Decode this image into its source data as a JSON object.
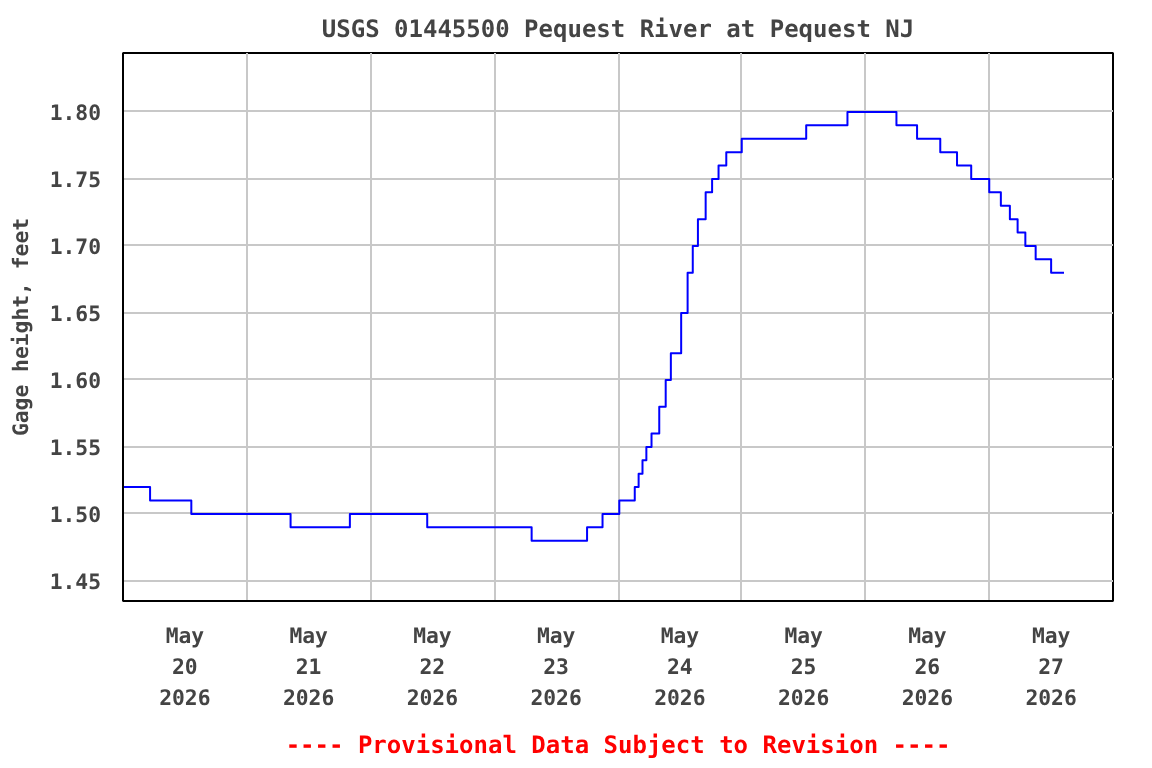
{
  "chart_data": {
    "type": "step",
    "title": "USGS 01445500 Pequest River at Pequest NJ",
    "ylabel": "Gage height, feet",
    "annotations": [
      "---- Provisional Data Subject to Revision ----"
    ],
    "x": [
      "2026-05-20T00:00",
      "2026-05-20T05:15",
      "2026-05-20T13:15",
      "2026-05-21T08:30",
      "2026-05-21T20:00",
      "2026-05-22T11:00",
      "2026-05-23T07:15",
      "2026-05-23T18:00",
      "2026-05-23T21:00",
      "2026-05-24T00:15",
      "2026-05-24T03:15",
      "2026-05-24T04:00",
      "2026-05-24T04:45",
      "2026-05-24T05:30",
      "2026-05-24T06:30",
      "2026-05-24T08:00",
      "2026-05-24T09:15",
      "2026-05-24T10:15",
      "2026-05-24T12:15",
      "2026-05-24T13:30",
      "2026-05-24T14:30",
      "2026-05-24T15:30",
      "2026-05-24T17:00",
      "2026-05-24T18:15",
      "2026-05-24T19:30",
      "2026-05-24T21:00",
      "2026-05-25T00:00",
      "2026-05-25T12:30",
      "2026-05-25T20:30",
      "2026-05-26T06:00",
      "2026-05-26T10:00",
      "2026-05-26T14:30",
      "2026-05-26T17:45",
      "2026-05-26T20:30",
      "2026-05-27T00:00",
      "2026-05-27T02:15",
      "2026-05-27T04:00",
      "2026-05-27T05:30",
      "2026-05-27T07:00",
      "2026-05-27T09:00",
      "2026-05-27T12:00",
      "2026-05-27T14:30"
    ],
    "series": [
      {
        "color": "#0000ff",
        "values": [
          1.52,
          1.51,
          1.5,
          1.49,
          1.5,
          1.49,
          1.48,
          1.49,
          1.5,
          1.51,
          1.52,
          1.53,
          1.54,
          1.55,
          1.56,
          1.58,
          1.6,
          1.62,
          1.65,
          1.68,
          1.7,
          1.72,
          1.74,
          1.75,
          1.76,
          1.77,
          1.78,
          1.79,
          1.8,
          1.79,
          1.78,
          1.77,
          1.76,
          1.75,
          1.74,
          1.73,
          1.72,
          1.71,
          1.7,
          1.69,
          1.68,
          1.68
        ]
      }
    ],
    "xlim": [
      "2026-05-20T00:00",
      "2026-05-28T00:00"
    ],
    "xticks": [
      {
        "value": "2026-05-20T00:00",
        "label": null
      },
      {
        "value": "2026-05-20T12:00",
        "label": "May\n20\n2026"
      },
      {
        "value": "2026-05-21T00:00",
        "label": null
      },
      {
        "value": "2026-05-21T12:00",
        "label": "May\n21\n2026"
      },
      {
        "value": "2026-05-22T00:00",
        "label": null
      },
      {
        "value": "2026-05-22T12:00",
        "label": "May\n22\n2026"
      },
      {
        "value": "2026-05-23T00:00",
        "label": null
      },
      {
        "value": "2026-05-23T12:00",
        "label": "May\n23\n2026"
      },
      {
        "value": "2026-05-24T00:00",
        "label": null
      },
      {
        "value": "2026-05-24T12:00",
        "label": "May\n24\n2026"
      },
      {
        "value": "2026-05-25T00:00",
        "label": null
      },
      {
        "value": "2026-05-25T12:00",
        "label": "May\n25\n2026"
      },
      {
        "value": "2026-05-26T00:00",
        "label": null
      },
      {
        "value": "2026-05-26T12:00",
        "label": "May\n26\n2026"
      },
      {
        "value": "2026-05-27T00:00",
        "label": null
      },
      {
        "value": "2026-05-27T12:00",
        "label": "May\n27\n2026"
      },
      {
        "value": "2026-05-28T00:00",
        "label": null
      }
    ],
    "ylim": [
      1.435,
      1.844
    ],
    "yticks": [
      {
        "value": 1.45,
        "label": "1.45"
      },
      {
        "value": 1.5,
        "label": "1.50"
      },
      {
        "value": 1.55,
        "label": "1.55"
      },
      {
        "value": 1.6,
        "label": "1.60"
      },
      {
        "value": 1.65,
        "label": "1.65"
      },
      {
        "value": 1.7,
        "label": "1.70"
      },
      {
        "value": 1.75,
        "label": "1.75"
      },
      {
        "value": 1.8,
        "label": "1.80"
      }
    ],
    "grid": true,
    "line_style": "solid"
  }
}
